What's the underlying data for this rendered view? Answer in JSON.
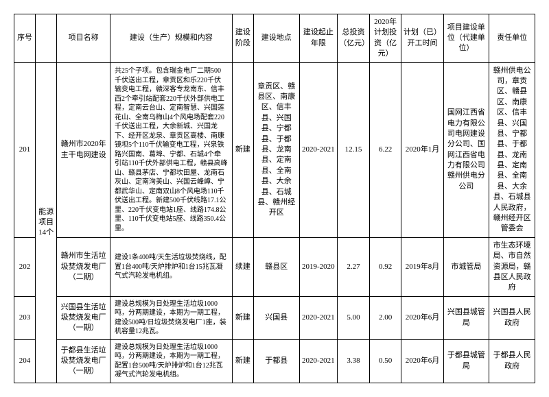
{
  "headers": {
    "seq": "序号",
    "category": "",
    "name": "项目名称",
    "content": "建设（生产）规模和内容",
    "stage": "建设阶段",
    "location": "建设地点",
    "period": "建设起止年限",
    "invest": "总投资（亿元）",
    "plan": "2020年计划投资（亿元）",
    "time": "计划（已）开工时间",
    "unit": "项目建设单位（代建单位）",
    "resp": "责任单位"
  },
  "category_label": "能源项目14个",
  "rows": [
    {
      "seq": "201",
      "name": "赣州市2020年主干电网建设",
      "content": "共25个子项。包含瑞金电厂二期500千伏送出工程，章贡区和乐220千伏输变电工程，赣深客专龙南东、信丰西2个牵引站配套220千伏外部供电工程，定南云台山、定南智慧、兴国莲花山、全南乌梅山4个风电场配套220千伏送出工程，大余新城、兴国龙下、经开区龙泉、章贡区高楼、南康镜坝5个110千伏输变电工程，兴泉铁路兴国南、葛埠、宁都、石城4个牵引站110千伏外部供电工程，赣县高峰山、赣县茅店、宁都坎田屋、龙南石灰山、定南洵美山、兴国云峰嶂、宁都武华山、定南双山8个风电场110千伏送出工程。新建500千伏线路17.1公里、220千伏变电站1座、线路174.8公里、110千伏变电站5座、线路350.4公里。",
      "stage": "新建",
      "location": "章贡区、赣县区、南康区、信丰县、兴国县、宁都县、于都县、龙南县、定南县、全南县、大余县、石城县、赣州经开区",
      "period": "2020-2021",
      "invest": "12.15",
      "plan": "6.22",
      "time": "2020年1月",
      "unit": "国网江西省电力有限公司电网建设分公司、国网江西省电力有限公司赣州供电分公司",
      "resp": "赣州供电公司，章贡区、赣县区、南康区、信丰县、兴国县、宁都县、于都县、龙南县、定南县、全南县、大余县、石城县人民政府，赣州经开区管委会"
    },
    {
      "seq": "202",
      "name": "赣州市生活垃圾焚烧发电厂（二期）",
      "content": "建设1条400吨/天生活垃圾焚烧线，配置1台400吨/天炉排炉和1台15兆瓦凝气式汽轮发电机组。",
      "stage": "续建",
      "location": "赣县区",
      "period": "2019-2020",
      "invest": "2.27",
      "plan": "0.92",
      "time": "2019年8月",
      "unit": "市城管局",
      "resp": "市生态环境局、市自然资源局，赣县区人民政府"
    },
    {
      "seq": "203",
      "name": "兴国县生活垃圾焚烧发电厂（一期）",
      "content": "建设总规模为日处理生活垃圾1000吨，分两期建设，本期为一期工程，建设500吨/日垃圾焚烧发电厂1座，装机容量12兆瓦。",
      "stage": "新建",
      "location": "兴国县",
      "period": "2020-2021",
      "invest": "5.00",
      "plan": "2.00",
      "time": "2020年6月",
      "unit": "兴国县城管局",
      "resp": "兴国县人民政府"
    },
    {
      "seq": "204",
      "name": "于都县生活垃圾焚烧发电厂（一期）",
      "content": "建设总规模为日处理生活垃圾1000吨，分两期建设，本期为一期工程，配置1台500吨/天炉排炉和1台12兆瓦凝气式汽轮发电机组。",
      "stage": "新建",
      "location": "于都县",
      "period": "2020-2021",
      "invest": "3.38",
      "plan": "0.50",
      "time": "2020年6月",
      "unit": "于都县城管局",
      "resp": "于都县人民政府"
    }
  ]
}
